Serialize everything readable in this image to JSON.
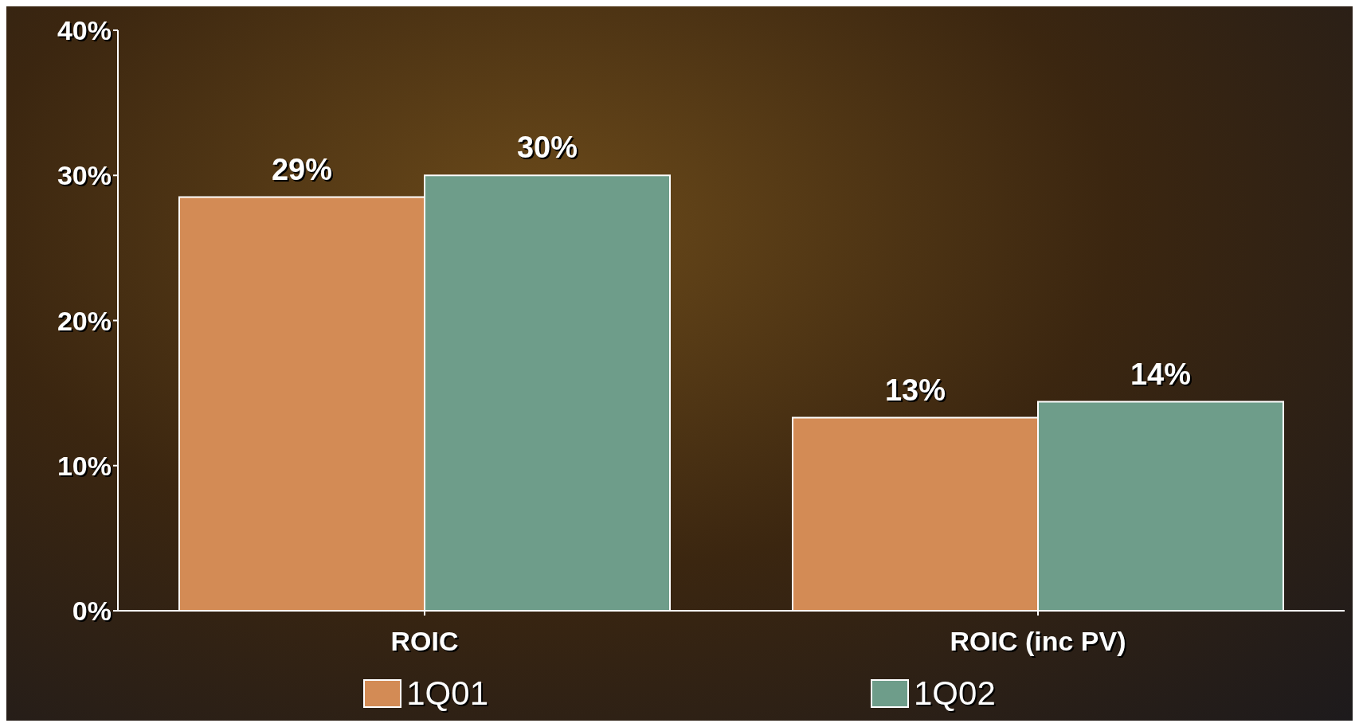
{
  "chart_data": {
    "type": "bar",
    "categories": [
      "ROIC",
      "ROIC (inc PV)"
    ],
    "series": [
      {
        "name": "1Q01",
        "color": "#d38b55",
        "values": [
          28.5,
          13.3
        ],
        "value_labels": [
          "29%",
          "13%"
        ]
      },
      {
        "name": "1Q02",
        "color": "#6e9d8a",
        "values": [
          30,
          14.4
        ],
        "value_labels": [
          "30%",
          "14%"
        ]
      }
    ],
    "ylim": [
      0,
      40
    ],
    "yticks": [
      {
        "value": 0,
        "label": "0%"
      },
      {
        "value": 10,
        "label": "10%"
      },
      {
        "value": 20,
        "label": "20%"
      },
      {
        "value": 30,
        "label": "30%"
      },
      {
        "value": 40,
        "label": "40%"
      }
    ],
    "grid": false,
    "legend": "bottom"
  }
}
